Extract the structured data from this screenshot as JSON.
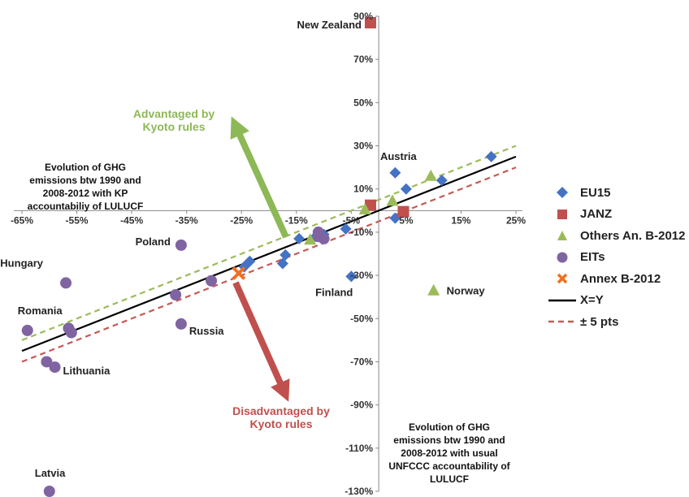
{
  "chart_data": {
    "type": "scatter",
    "xlim": [
      -65,
      25
    ],
    "ylim": [
      -130,
      90
    ],
    "x_ticks": [
      "-65%",
      "-55%",
      "-45%",
      "-35%",
      "-25%",
      "-15%",
      "-5%",
      "5%",
      "15%",
      "25%"
    ],
    "x_tick_values": [
      -65,
      -55,
      -45,
      -35,
      -25,
      -15,
      -5,
      5,
      15,
      25
    ],
    "y_ticks": [
      "90%",
      "70%",
      "50%",
      "30%",
      "10%",
      "-10%",
      "-30%",
      "-50%",
      "-70%",
      "-90%",
      "-110%",
      "-130%"
    ],
    "y_tick_values": [
      90,
      70,
      50,
      30,
      10,
      -10,
      -30,
      -50,
      -70,
      -90,
      -110,
      -130
    ],
    "series": [
      {
        "name": "EU15",
        "marker": "diamond",
        "color": "#4472C4",
        "points": [
          [
            20.5,
            25
          ],
          [
            11.5,
            14
          ],
          [
            5,
            10
          ],
          [
            3,
            17.5
          ],
          [
            3,
            -3.5
          ],
          [
            -6,
            -8.5
          ],
          [
            -10,
            -11
          ],
          [
            -11.5,
            -12
          ],
          [
            -14.5,
            -13
          ],
          [
            -17,
            -20.5
          ],
          [
            -17.5,
            -24.5
          ],
          [
            -23.5,
            -23.5
          ],
          [
            -24.5,
            -26
          ],
          [
            -5,
            -30.5
          ]
        ]
      },
      {
        "name": "JANZ",
        "marker": "square",
        "color": "#C0504D",
        "points": [
          [
            -1.5,
            87
          ],
          [
            -1.5,
            2.5
          ],
          [
            4.5,
            -0.5
          ]
        ]
      },
      {
        "name": "Others An. B-2012",
        "marker": "triangle",
        "color": "#9BBB59",
        "points": [
          [
            9.5,
            16
          ],
          [
            2.5,
            4.5
          ],
          [
            -2.5,
            0.5
          ],
          [
            -12.5,
            -13.5
          ],
          [
            10,
            -37
          ]
        ]
      },
      {
        "name": "EITs",
        "marker": "circle",
        "color": "#8064A2",
        "points": [
          [
            -36,
            -16
          ],
          [
            -57,
            -33.5
          ],
          [
            -37,
            -39
          ],
          [
            -30.5,
            -32.5
          ],
          [
            -64,
            -55.5
          ],
          [
            -56.5,
            -54.5
          ],
          [
            -56,
            -56.5
          ],
          [
            -36,
            -52.5
          ],
          [
            -59,
            -72.5
          ],
          [
            -60.5,
            -70
          ],
          [
            -60,
            -130
          ],
          [
            -11,
            -10
          ],
          [
            -11,
            -12
          ],
          [
            -10,
            -13
          ]
        ]
      },
      {
        "name": "Annex B-2012",
        "marker": "x",
        "color": "#F07020",
        "points": [
          [
            -25.5,
            -29
          ]
        ]
      }
    ],
    "lines": [
      {
        "name": "X=Y",
        "style": "solid",
        "color": "#000000",
        "offset": 0
      },
      {
        "name": "± 5 pts",
        "style": "dashed",
        "color": "#C55A55",
        "offset": -5
      },
      {
        "name": "",
        "style": "dashed",
        "color": "#9BBB59",
        "offset": 5
      }
    ],
    "point_labels": [
      {
        "text": "New Zealand",
        "x": -1.5,
        "y": 87
      },
      {
        "text": "Austria",
        "x": 3,
        "y": 17.5
      },
      {
        "text": "Poland",
        "x": -36,
        "y": -16
      },
      {
        "text": "Hungary",
        "x": -57,
        "y": -33.5
      },
      {
        "text": "Finland",
        "x": -5,
        "y": -30.5
      },
      {
        "text": "Norway",
        "x": 10,
        "y": -37
      },
      {
        "text": "Romania",
        "x": -64,
        "y": -55.5
      },
      {
        "text": "Russia",
        "x": -36,
        "y": -52.5
      },
      {
        "text": "Lithuania",
        "x": -59,
        "y": -72.5
      },
      {
        "text": "Latvia",
        "x": -60,
        "y": -130
      }
    ],
    "annotations": {
      "advantaged": "Advantaged by Kyoto rules",
      "disadvantaged": "Disadvantaged by Kyoto rules",
      "y_axis_note": "Evolution of GHG emissions btw 1990 and 2008-2012 with KP accountabiliy of LULUCF",
      "x_axis_note": "Evolution of GHG emissions btw 1990 and 2008-2012 with usual UNFCCC accountability of LULUCF"
    },
    "arrow_colors": {
      "advantaged": "#8DB856",
      "disadvantaged": "#C0504D"
    },
    "legend_position": "right"
  }
}
